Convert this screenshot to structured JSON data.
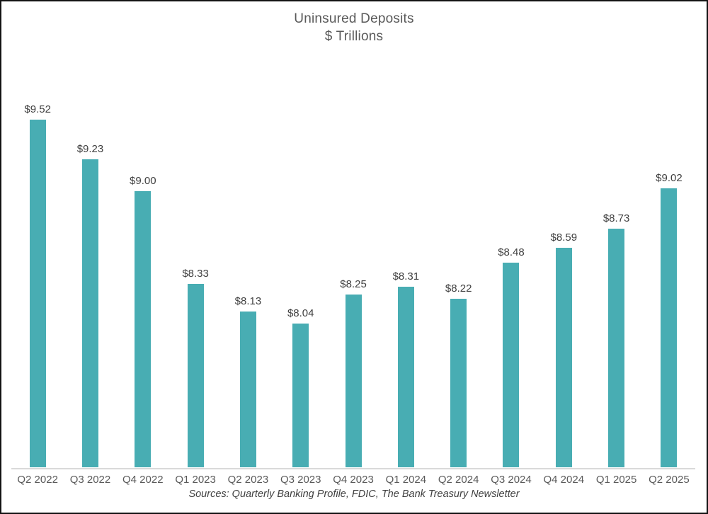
{
  "colors": {
    "bar": "#48ADB3",
    "title_text": "#595959",
    "data_label_text": "#3f3f3f",
    "axis_label_text": "#595959",
    "axis_line": "#d9d9d9",
    "border": "#141414",
    "background": "#ffffff"
  },
  "chart_data": {
    "type": "bar",
    "title": "Uninsured Deposits",
    "subtitle": "$ Trillions",
    "categories": [
      "Q2 2022",
      "Q3 2022",
      "Q4 2022",
      "Q1 2023",
      "Q2 2023",
      "Q3 2023",
      "Q4 2023",
      "Q1 2024",
      "Q2 2024",
      "Q3 2024",
      "Q4 2024",
      "Q1 2025",
      "Q2 2025"
    ],
    "values": [
      9.52,
      9.23,
      9.0,
      8.33,
      8.13,
      8.04,
      8.25,
      8.31,
      8.22,
      8.48,
      8.59,
      8.73,
      9.02
    ],
    "data_labels": [
      "$9.52",
      "$9.23",
      "$9.00",
      "$8.33",
      "$8.13",
      "$8.04",
      "$8.25",
      "$8.31",
      "$8.22",
      "$8.48",
      "$8.59",
      "$8.73",
      "$9.02"
    ],
    "xlabel": "",
    "ylabel": "",
    "ylim": [
      7.0,
      10.0
    ],
    "grid": "off",
    "legend": "none",
    "y_axis_visible": false,
    "source_note": "Sources: Quarterly Banking Profile, FDIC, The Bank Treasury Newsletter"
  }
}
